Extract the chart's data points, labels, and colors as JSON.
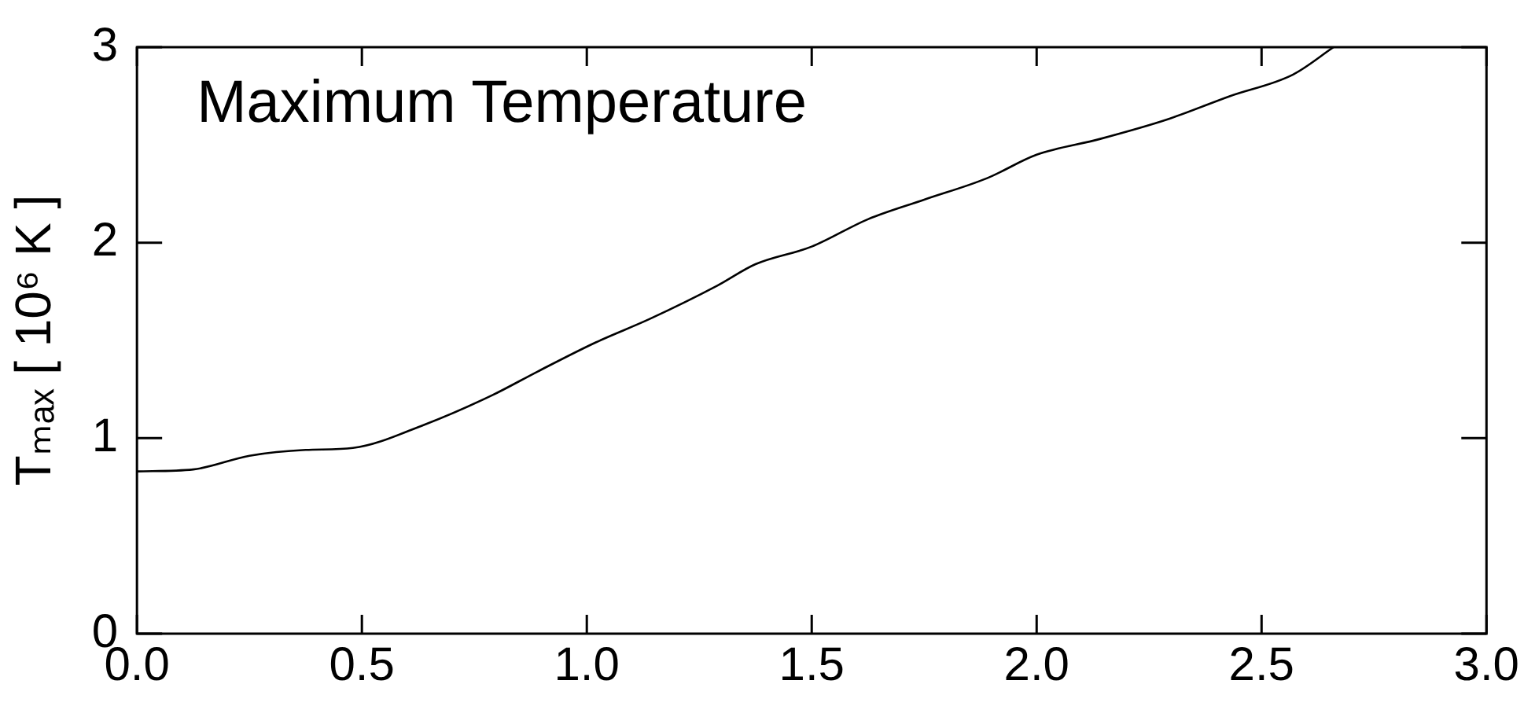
{
  "chart_data": {
    "type": "line",
    "ylabel": "Tₘₐₓ [ 10⁶ K ]",
    "annotations": [
      "Maximum Temperature"
    ],
    "x": [
      0,
      0.125,
      0.25,
      0.375,
      0.48,
      0.64,
      0.79,
      0.89,
      1.02,
      1.14,
      1.29,
      1.375,
      1.5,
      1.625,
      1.75,
      1.89,
      2.0,
      2.14,
      2.29,
      2.43,
      2.57,
      2.66
    ],
    "series": [
      {
        "color": "#000000",
        "values": [
          0.83,
          0.84,
          0.91,
          0.94,
          0.95,
          1.07,
          1.22,
          1.34,
          1.49,
          1.61,
          1.78,
          1.89,
          1.98,
          2.12,
          2.22,
          2.33,
          2.45,
          2.53,
          2.63,
          2.75,
          2.86,
          3.0
        ]
      }
    ],
    "xlim": [
      0,
      3
    ],
    "xticks": [
      {
        "value": 0,
        "label": "0.0"
      },
      {
        "value": 0.5,
        "label": "0.5"
      },
      {
        "value": 1,
        "label": "1.0"
      },
      {
        "value": 1.5,
        "label": "1.5"
      },
      {
        "value": 2,
        "label": "2.0"
      },
      {
        "value": 2.5,
        "label": "2.5"
      },
      {
        "value": 3,
        "label": "3.0"
      }
    ],
    "ylim": [
      0,
      3
    ],
    "yticks": [
      0,
      1,
      2,
      3
    ],
    "grid": false,
    "legend": false,
    "marker": "none",
    "line_style": "solid"
  }
}
